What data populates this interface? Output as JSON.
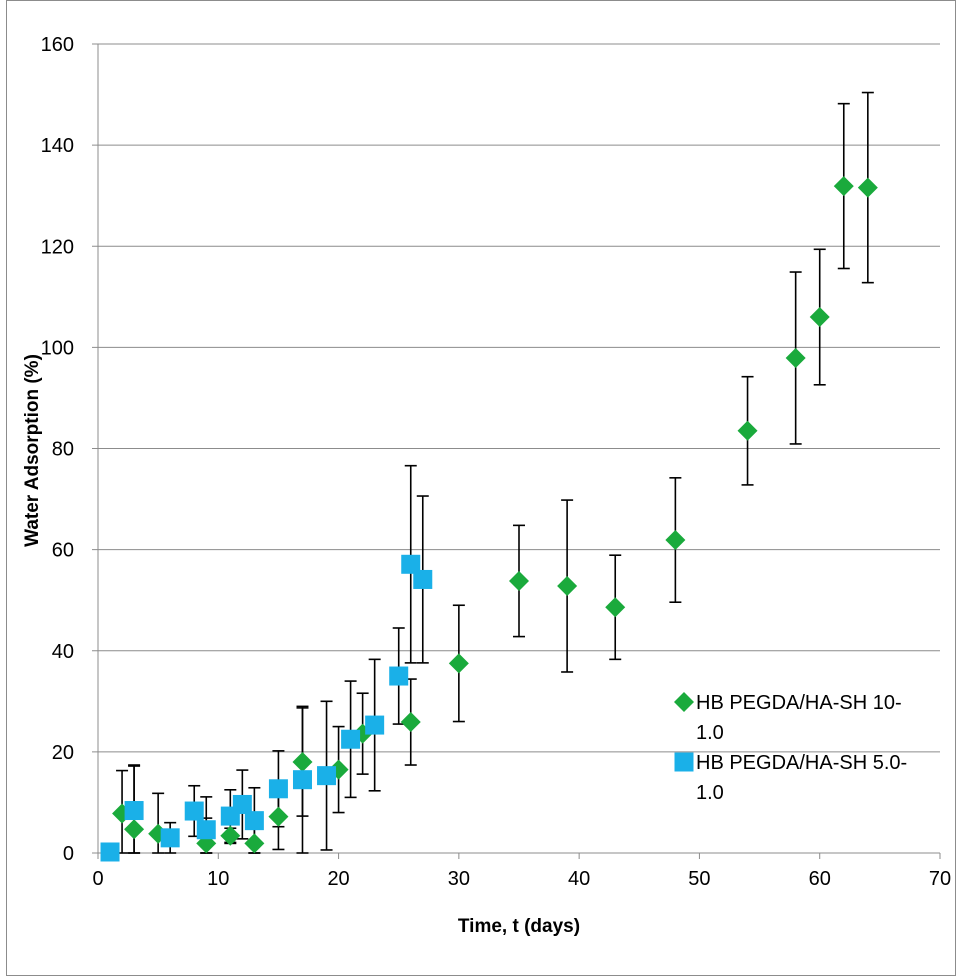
{
  "chart_data": {
    "type": "scatter",
    "title": "",
    "xlabel": "Time, t (days)",
    "ylabel": "Water Adsorption (%)",
    "xlim": [
      0,
      70
    ],
    "ylim": [
      0,
      160
    ],
    "xticks": [
      0,
      10,
      20,
      30,
      40,
      50,
      60,
      70
    ],
    "yticks": [
      0,
      20,
      40,
      60,
      80,
      100,
      120,
      140,
      160
    ],
    "grid": "horizontal",
    "legend_position": "right-inside",
    "series": [
      {
        "name": "HB PEGDA/HA-SH 10-1.0",
        "legend_lines": [
          "HB PEGDA/HA-SH 10-",
          "1.0"
        ],
        "marker": "diamond",
        "color": "#1aaa3c",
        "points": [
          {
            "x": 2,
            "y": 7.8,
            "err": 8.5
          },
          {
            "x": 3,
            "y": 4.7,
            "err": 12.5
          },
          {
            "x": 5,
            "y": 3.8,
            "err": 8.0
          },
          {
            "x": 9,
            "y": 1.9,
            "err": 5.0
          },
          {
            "x": 11,
            "y": 3.4,
            "err": 1.5
          },
          {
            "x": 13,
            "y": 1.9,
            "err": 4.0
          },
          {
            "x": 15,
            "y": 7.2,
            "err": 6.5
          },
          {
            "x": 17,
            "y": 18.0,
            "err": 10.7
          },
          {
            "x": 20,
            "y": 16.5,
            "err": 8.5
          },
          {
            "x": 22,
            "y": 23.6,
            "err": 8.0
          },
          {
            "x": 26,
            "y": 25.9,
            "err": 8.5
          },
          {
            "x": 30,
            "y": 37.5,
            "err": 11.5
          },
          {
            "x": 35,
            "y": 53.8,
            "err": 11.0
          },
          {
            "x": 39,
            "y": 52.8,
            "err": 17.0
          },
          {
            "x": 43,
            "y": 48.6,
            "err": 10.3
          },
          {
            "x": 48,
            "y": 61.9,
            "err": 12.3
          },
          {
            "x": 54,
            "y": 83.5,
            "err": 10.7
          },
          {
            "x": 58,
            "y": 97.9,
            "err": 17.0
          },
          {
            "x": 60,
            "y": 106.0,
            "err": 13.4
          },
          {
            "x": 62,
            "y": 131.9,
            "err": 16.3
          },
          {
            "x": 64,
            "y": 131.6,
            "err": 18.8
          }
        ]
      },
      {
        "name": "HB PEGDA/HA-SH 5.0-1.0",
        "legend_lines": [
          "HB PEGDA/HA-SH 5.0-",
          "1.0"
        ],
        "marker": "square",
        "color": "#1ab0e8",
        "points": [
          {
            "x": 1,
            "y": 0.2,
            "err": 0
          },
          {
            "x": 3,
            "y": 8.4,
            "err": 9.0
          },
          {
            "x": 6,
            "y": 3.0,
            "err": 3.0
          },
          {
            "x": 8,
            "y": 8.3,
            "err": 5.0
          },
          {
            "x": 9,
            "y": 4.6,
            "err": 6.5
          },
          {
            "x": 11,
            "y": 7.3,
            "err": 5.2
          },
          {
            "x": 12,
            "y": 9.6,
            "err": 6.8
          },
          {
            "x": 13,
            "y": 6.4,
            "err": 6.5
          },
          {
            "x": 15,
            "y": 12.7,
            "err": 7.5
          },
          {
            "x": 17,
            "y": 14.5,
            "err": 14.5
          },
          {
            "x": 19,
            "y": 15.3,
            "err": 14.7
          },
          {
            "x": 21,
            "y": 22.5,
            "err": 11.5
          },
          {
            "x": 23,
            "y": 25.3,
            "err": 13.0
          },
          {
            "x": 25,
            "y": 35.0,
            "err": 9.5
          },
          {
            "x": 26,
            "y": 57.1,
            "err": 19.5
          },
          {
            "x": 27,
            "y": 54.1,
            "err": 16.5
          }
        ]
      }
    ]
  }
}
